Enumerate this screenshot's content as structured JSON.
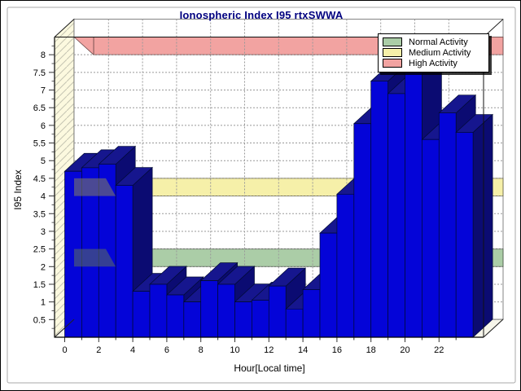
{
  "chart_data": {
    "type": "bar",
    "title": "Ionospheric Index I95 rtxSWWA",
    "title_color": "#000080",
    "xlabel": "Hour[Local time]",
    "ylabel": "I95 Index",
    "x": [
      0,
      1,
      2,
      3,
      4,
      5,
      6,
      7,
      8,
      9,
      10,
      11,
      12,
      13,
      14,
      15,
      16,
      17,
      18,
      19,
      20,
      21,
      22,
      23
    ],
    "values": [
      4.7,
      4.8,
      4.9,
      4.3,
      1.3,
      1.5,
      1.2,
      1.0,
      1.6,
      1.5,
      1.0,
      1.05,
      1.45,
      0.8,
      1.35,
      2.95,
      4.05,
      6.05,
      7.25,
      6.9,
      7.5,
      5.6,
      6.35,
      5.8
    ],
    "ylim": [
      0,
      8.5
    ],
    "y_ticks": [
      0.5,
      1,
      1.5,
      2,
      2.5,
      3,
      3.5,
      4,
      4.5,
      5,
      5.5,
      6,
      6.5,
      7,
      7.5,
      8
    ],
    "x_ticks": [
      0,
      2,
      4,
      6,
      8,
      10,
      12,
      14,
      16,
      18,
      20,
      22
    ],
    "grid": true,
    "legend_position": "top-right",
    "series_name": "I95",
    "bar_colors": {
      "front": "#0404d8",
      "top": "#16168e",
      "side": "#0b0b72",
      "outline": "#000a33"
    },
    "bands": [
      {
        "name": "Normal Activity",
        "from": 2,
        "to": 2.5,
        "color": "#abcda7"
      },
      {
        "name": "Medium Activity",
        "from": 4,
        "to": 4.5,
        "color": "#f6f0a9"
      },
      {
        "name": "High Activity",
        "from": 8,
        "to": 8.5,
        "color": "#f2a3a1"
      }
    ],
    "legend": [
      {
        "label": "Normal Activity",
        "color": "#abcda7"
      },
      {
        "label": "Medium Activity",
        "color": "#f6f0a9"
      },
      {
        "label": "High Activity",
        "color": "#f2a3a1"
      }
    ]
  }
}
